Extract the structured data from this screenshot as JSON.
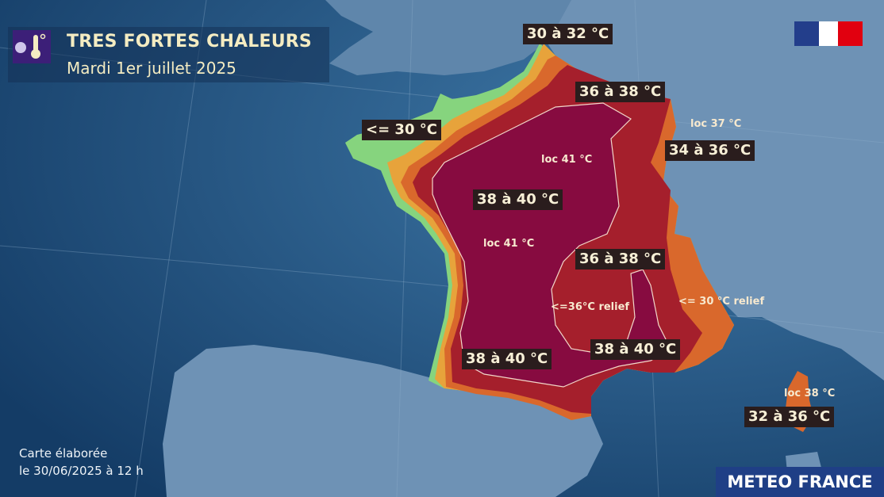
{
  "header": {
    "icon": "heat-thermometer-icon",
    "title": "TRES FORTES CHALEURS",
    "date": "Mardi 1er juillet 2025"
  },
  "zones": [
    {
      "label": "<= 30 °C",
      "color": "#86d47e"
    },
    {
      "label": "30 à 32 °C",
      "color": "#e7a33b"
    },
    {
      "label": "34 à 36 °C",
      "color": "#d9682c"
    },
    {
      "label": "36 à 38 °C",
      "color": "#a51f2c"
    },
    {
      "label": "38 à 40 °C",
      "color": "#870b40"
    },
    {
      "label": "36 à 38 °C",
      "color": "#a51f2c"
    },
    {
      "label": "38 à 40 °C",
      "color": "#870b40"
    },
    {
      "label": "38 à 40 °C",
      "color": "#870b40"
    },
    {
      "label": "32 à 36 °C",
      "color": "#d9682c"
    }
  ],
  "local_notes": [
    "loc 37 °C",
    "loc 41 °C",
    "loc 41 °C",
    "<=36°C relief",
    "<= 30 °C relief",
    "loc 38 °C"
  ],
  "footer": {
    "line1": "Carte élaborée",
    "line2": "le 30/06/2025 à 12 h"
  },
  "brand": "METEO FRANCE",
  "logo": "republique-francaise-logo"
}
